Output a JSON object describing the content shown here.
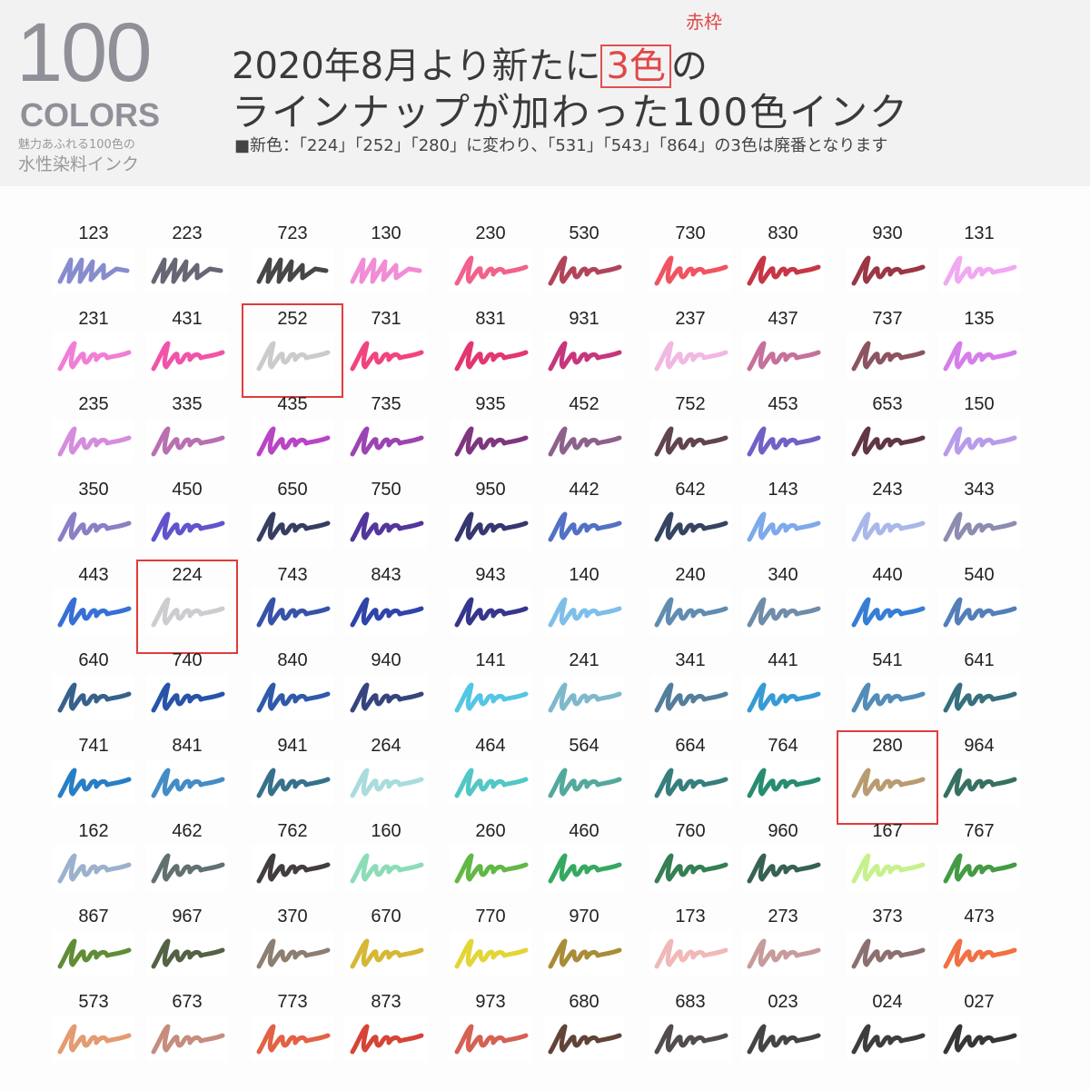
{
  "header": {
    "big_number": "100",
    "colors_label": "COLORS",
    "tagline_1": "魅力あふれる100色の",
    "tagline_2": "水性染料インク",
    "headline_pre": "2020年8月より新たに",
    "headline_highlight": "3色",
    "headline_post": "の",
    "highlight_note": "赤枠",
    "headline_line2": "ラインナップが加わった100色インク",
    "note": "■新色：「224」「252」「280」に変わり、「531」「543」「864」の3色は廃番となります"
  },
  "accent_color": "#e03c3c",
  "swatches": [
    [
      [
        "123",
        "#7a80c8"
      ],
      [
        "223",
        "#555566"
      ],
      [
        "723",
        "#333333"
      ],
      [
        "130",
        "#f080d0"
      ],
      [
        "230",
        "#f05080"
      ],
      [
        "530",
        "#a83048"
      ],
      [
        "730",
        "#f04050"
      ],
      [
        "830",
        "#c02030"
      ],
      [
        "930",
        "#902030"
      ],
      [
        "131",
        "#f0a0f0"
      ]
    ],
    [
      [
        "231",
        "#f070d0"
      ],
      [
        "431",
        "#f040a0"
      ],
      [
        "252",
        "#c8c4c8",
        true
      ],
      [
        "731",
        "#f03070"
      ],
      [
        "831",
        "#e02060"
      ],
      [
        "931",
        "#c02070"
      ],
      [
        "237",
        "#f0b0e0"
      ],
      [
        "437",
        "#c06090"
      ],
      [
        "737",
        "#804050"
      ],
      [
        "135",
        "#d070e8"
      ]
    ],
    [
      [
        "235",
        "#d080d8"
      ],
      [
        "335",
        "#b060a8"
      ],
      [
        "435",
        "#b030c0"
      ],
      [
        "735",
        "#9030a8"
      ],
      [
        "935",
        "#702070"
      ],
      [
        "452",
        "#805080"
      ],
      [
        "752",
        "#503038"
      ],
      [
        "453",
        "#6050c0"
      ],
      [
        "653",
        "#502030"
      ],
      [
        "150",
        "#b090e8"
      ]
    ],
    [
      [
        "350",
        "#8070c0"
      ],
      [
        "450",
        "#5040c8"
      ],
      [
        "650",
        "#202850"
      ],
      [
        "750",
        "#402090"
      ],
      [
        "950",
        "#202060"
      ],
      [
        "442",
        "#4060c0"
      ],
      [
        "642",
        "#203050"
      ],
      [
        "143",
        "#70a0e8"
      ],
      [
        "243",
        "#a0b0e8"
      ],
      [
        "343",
        "#8080a8"
      ]
    ],
    [
      [
        "443",
        "#2060d0"
      ],
      [
        "224",
        "#c8c8cc",
        true
      ],
      [
        "743",
        "#2040a0"
      ],
      [
        "843",
        "#1830a0"
      ],
      [
        "943",
        "#202080"
      ],
      [
        "140",
        "#70b8e8"
      ],
      [
        "240",
        "#5080a8"
      ],
      [
        "340",
        "#6080a0"
      ],
      [
        "440",
        "#2070d0"
      ],
      [
        "540",
        "#4070b0"
      ]
    ],
    [
      [
        "640",
        "#205080"
      ],
      [
        "740",
        "#1040a0"
      ],
      [
        "840",
        "#1848a0"
      ],
      [
        "940",
        "#203070"
      ],
      [
        "141",
        "#40c0e0"
      ],
      [
        "241",
        "#70b0c8"
      ],
      [
        "341",
        "#407090"
      ],
      [
        "441",
        "#2090d0"
      ],
      [
        "541",
        "#4080b0"
      ],
      [
        "641",
        "#206070"
      ]
    ],
    [
      [
        "741",
        "#1070c0"
      ],
      [
        "841",
        "#3080c0"
      ],
      [
        "941",
        "#206080"
      ],
      [
        "264",
        "#a0d8d8"
      ],
      [
        "464",
        "#40c0c0"
      ],
      [
        "564",
        "#40a090"
      ],
      [
        "664",
        "#207070"
      ],
      [
        "764",
        "#108060"
      ],
      [
        "280",
        "#b09060",
        true
      ],
      [
        "964",
        "#206050"
      ]
    ],
    [
      [
        "162",
        "#90a8c8"
      ],
      [
        "462",
        "#506060"
      ],
      [
        "762",
        "#302828"
      ],
      [
        "160",
        "#80d8b0"
      ],
      [
        "260",
        "#50b030"
      ],
      [
        "460",
        "#20a050"
      ],
      [
        "760",
        "#207040"
      ],
      [
        "960",
        "#205040"
      ],
      [
        "167",
        "#c0f080"
      ],
      [
        "767",
        "#309030"
      ]
    ],
    [
      [
        "867",
        "#508020"
      ],
      [
        "967",
        "#405030"
      ],
      [
        "370",
        "#807060"
      ],
      [
        "670",
        "#d0b020"
      ],
      [
        "770",
        "#e0d020"
      ],
      [
        "970",
        "#a08020"
      ],
      [
        "173",
        "#f0b0b0"
      ],
      [
        "273",
        "#c09090"
      ],
      [
        "373",
        "#806060"
      ],
      [
        "473",
        "#f06030"
      ]
    ],
    [
      [
        "573",
        "#e09060"
      ],
      [
        "673",
        "#c08070"
      ],
      [
        "773",
        "#e05030"
      ],
      [
        "873",
        "#d03020"
      ],
      [
        "973",
        "#d05040"
      ],
      [
        "680",
        "#503020"
      ],
      [
        "683",
        "#403838"
      ],
      [
        "023",
        "#303030"
      ],
      [
        "024",
        "#282828"
      ],
      [
        "027",
        "#202020"
      ]
    ]
  ]
}
